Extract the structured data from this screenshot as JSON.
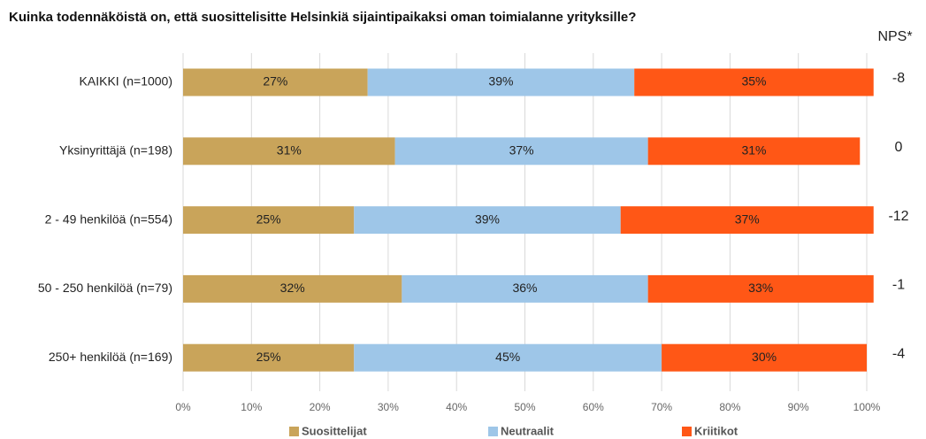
{
  "chart_data": {
    "type": "stacked-barh",
    "title": "Kuinka todennäköistä on, että suosittelisitte Helsinkiä sijaintipaikaksi oman toimialanne yrityksille?",
    "categories": [
      "KAIKKI (n=1000)",
      "Yksinyrittäjä (n=198)",
      "2 - 49 henkilöä (n=554)",
      "50 - 250 henkilöä (n=79)",
      "250+ henkilöä (n=169)"
    ],
    "series": [
      {
        "name": "Suosittelijat",
        "color": "#c9a45a",
        "values": [
          27,
          31,
          25,
          32,
          25
        ],
        "value_labels": [
          "27%",
          "31%",
          "25%",
          "32%",
          "25%"
        ]
      },
      {
        "name": "Neutraalit",
        "color": "#9ec6e8",
        "values": [
          39,
          37,
          39,
          36,
          45
        ],
        "value_labels": [
          "39%",
          "37%",
          "39%",
          "36%",
          "45%"
        ]
      },
      {
        "name": "Kriitikot",
        "color": "#ff5716",
        "values": [
          35,
          31,
          37,
          33,
          30
        ],
        "value_labels": [
          "35%",
          "31%",
          "37%",
          "33%",
          "30%"
        ]
      }
    ],
    "xlim": [
      0,
      100
    ],
    "xticks": [
      {
        "value": 0,
        "label": "0%"
      },
      {
        "value": 10,
        "label": "10%"
      },
      {
        "value": 20,
        "label": "20%"
      },
      {
        "value": 30,
        "label": "30%"
      },
      {
        "value": 40,
        "label": "40%"
      },
      {
        "value": 50,
        "label": "50%"
      },
      {
        "value": 60,
        "label": "60%"
      },
      {
        "value": 70,
        "label": "70%"
      },
      {
        "value": 80,
        "label": "80%"
      },
      {
        "value": 90,
        "label": "90%"
      },
      {
        "value": 100,
        "label": "100%"
      }
    ],
    "grid": true,
    "legend": "bottom",
    "nps": {
      "label": "NPS*",
      "values": [
        -8,
        0,
        -12,
        -1,
        -4
      ]
    }
  }
}
